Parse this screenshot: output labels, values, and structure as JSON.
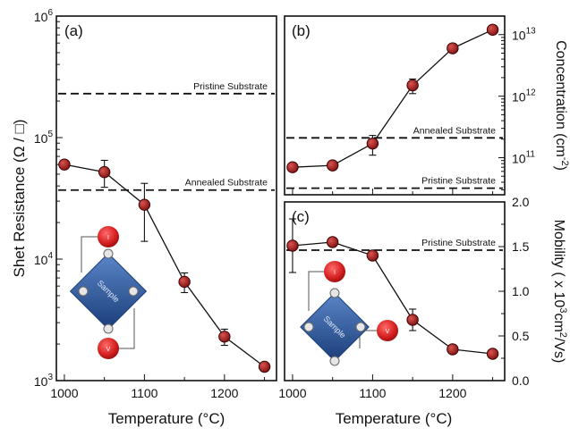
{
  "chart_data": [
    {
      "panel_label": "(a)",
      "type": "line",
      "scale": "log",
      "ylabel": "Shet Resistance (Ω / □)",
      "xlabel": "Temperature (°C)",
      "xlim": [
        990,
        1265
      ],
      "ylim": [
        1000,
        1000000
      ],
      "x_ticks": [
        1000,
        1100,
        1200
      ],
      "y_ticks": [
        {
          "value": 1000,
          "base": "10",
          "exp": "3"
        },
        {
          "value": 10000,
          "base": "10",
          "exp": "4"
        },
        {
          "value": 100000,
          "base": "10",
          "exp": "5"
        },
        {
          "value": 1000000,
          "base": "10",
          "exp": "6"
        }
      ],
      "series": [
        {
          "x": [
            1000,
            1050,
            1100,
            1150,
            1200,
            1250
          ],
          "y": [
            60000,
            52000,
            28000,
            6500,
            2300,
            1300
          ],
          "err": [
            4000,
            13000,
            14000,
            1200,
            350,
            100
          ]
        }
      ],
      "reference_lines": [
        {
          "label": "Pristine Substrate",
          "y": 230000
        },
        {
          "label": "Annealed Substrate",
          "y": 37000
        }
      ],
      "inset": {
        "label": "Sample",
        "contacts": [
          "I",
          "V"
        ]
      }
    },
    {
      "panel_label": "(b)",
      "type": "line",
      "scale": "log",
      "ylabel": "Concentration (cm",
      "ylabel_sup": "-2",
      "ylabel_end": ")",
      "xlim": [
        990,
        1265
      ],
      "ylim": [
        25000000000,
        20000000000000
      ],
      "y_ticks": [
        {
          "value": 100000000000,
          "base": "10",
          "exp": "11"
        },
        {
          "value": 1000000000000,
          "base": "10",
          "exp": "12"
        },
        {
          "value": 10000000000000,
          "base": "10",
          "exp": "13"
        }
      ],
      "series": [
        {
          "x": [
            1000,
            1050,
            1100,
            1150,
            1200,
            1250
          ],
          "y": [
            70000000000,
            75000000000,
            170000000000,
            1500000000000,
            6000000000000,
            12000000000000
          ],
          "err": [
            5000000000,
            10000000000,
            60000000000,
            400000000000,
            0,
            0
          ]
        }
      ],
      "reference_lines": [
        {
          "label": "Annealed Substrate",
          "y": 210000000000
        },
        {
          "label": "Pristine Substrate",
          "y": 32000000000
        }
      ]
    },
    {
      "panel_label": "(c)",
      "type": "line",
      "scale": "linear",
      "ylabel": "Mobility ( x 10",
      "ylabel_sup": "3",
      "ylabel_mid": "cm",
      "ylabel_sup2": "2",
      "ylabel_end": "/Vs)",
      "xlabel": "Temperature (°C)",
      "xlim": [
        990,
        1265
      ],
      "ylim": [
        0,
        2.0
      ],
      "x_ticks": [
        1000,
        1100,
        1200
      ],
      "y_ticks": [
        "0.0",
        "0.5",
        "1.0",
        "1.5",
        "2.0"
      ],
      "series": [
        {
          "x": [
            1000,
            1050,
            1100,
            1150,
            1200,
            1250
          ],
          "y": [
            1.51,
            1.55,
            1.4,
            0.68,
            0.35,
            0.3
          ],
          "err": [
            0.3,
            0.0,
            0.0,
            0.12,
            0.0,
            0.0
          ]
        }
      ],
      "reference_lines": [
        {
          "label": "Pristine Substrate",
          "y": 1.46
        }
      ],
      "inset": {
        "label": "Sample",
        "contacts": [
          "I",
          "V"
        ]
      }
    }
  ]
}
